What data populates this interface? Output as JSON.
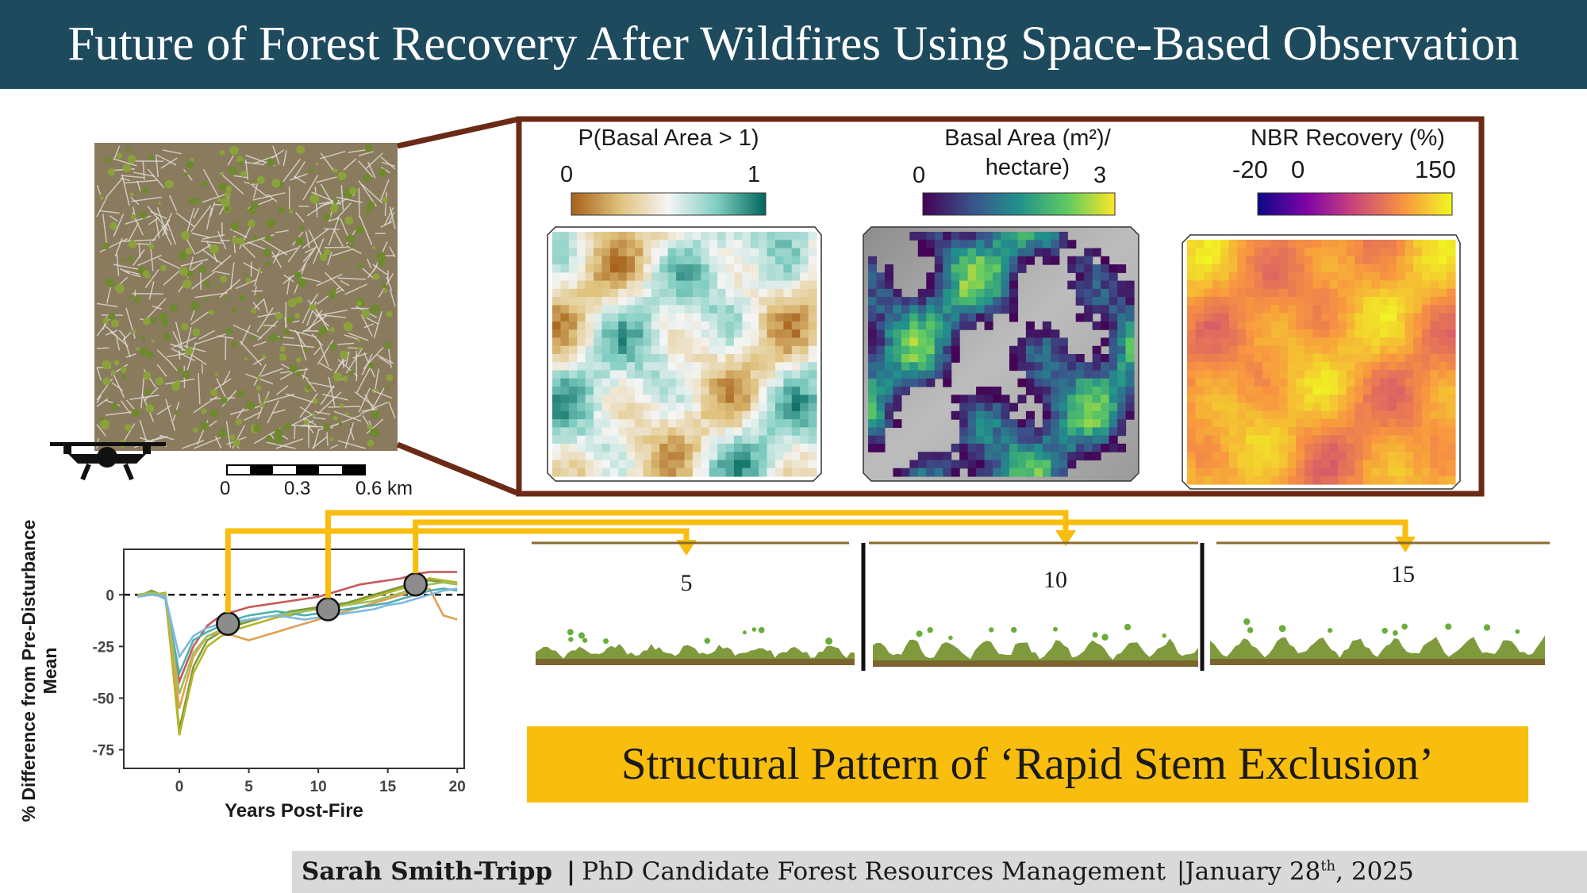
{
  "title": "Future of Forest Recovery After Wildfires Using Space-Based Observation",
  "scale_bar": {
    "ticks": [
      "0",
      "0.3",
      "0.6 km"
    ]
  },
  "maps": [
    {
      "title_lines": [
        "P(Basal Area > 1)"
      ],
      "min": "0",
      "max": "1",
      "colormap": [
        "#a6611a",
        "#dfc27d",
        "#f5f5f5",
        "#80cdc1",
        "#01665e"
      ]
    },
    {
      "title_lines": [
        "Basal Area (m²)/",
        "hectare)"
      ],
      "min": "0",
      "max": "3",
      "colormap": [
        "#440154",
        "#3b528b",
        "#21918c",
        "#5ec962",
        "#fde725"
      ]
    },
    {
      "title_lines": [
        "NBR Recovery (%)"
      ],
      "min": "-20",
      "mid": "0",
      "max": "150",
      "colormap": [
        "#0d0887",
        "#7e03a8",
        "#cc4778",
        "#f89540",
        "#f0f921"
      ]
    }
  ],
  "chart_data": {
    "type": "line",
    "xlabel": "Years Post-Fire",
    "ylabel": "% Difference from Pre-Disturbance Mean",
    "xlim": [
      -4,
      20.5
    ],
    "ylim": [
      -84,
      22
    ],
    "xticks": [
      "0",
      "5",
      "10",
      "15",
      "20"
    ],
    "yticks": [
      "0",
      "-25",
      "-50",
      "-75"
    ],
    "reference_line": 0,
    "grid": false,
    "x": [
      -3,
      -2,
      -1,
      0,
      1,
      2,
      3,
      4,
      5,
      6,
      7,
      8,
      9,
      10,
      11,
      12,
      13,
      14,
      15,
      16,
      17,
      18,
      19,
      20
    ],
    "series": [
      {
        "color": "#c85a5a",
        "values": [
          0,
          1,
          0,
          -42,
          -25,
          -15,
          -10,
          -8,
          -6,
          -5,
          -4,
          -3,
          -2,
          -1,
          1,
          3,
          5,
          6,
          7,
          8,
          10,
          11,
          11,
          11
        ]
      },
      {
        "color": "#7a9a3a",
        "values": [
          -1,
          2,
          -1,
          -65,
          -35,
          -22,
          -18,
          -15,
          -13,
          -11,
          -10,
          -8,
          -7,
          -6,
          -5,
          -4,
          -2,
          0,
          2,
          4,
          6,
          7,
          6,
          5
        ]
      },
      {
        "color": "#b5b52a",
        "values": [
          0,
          0,
          1,
          -68,
          -38,
          -25,
          -20,
          -17,
          -15,
          -13,
          -11,
          -10,
          -8,
          -7,
          -6,
          -5,
          -3,
          -1,
          1,
          3,
          5,
          8,
          7,
          6
        ]
      },
      {
        "color": "#e0a050",
        "values": [
          -1,
          1,
          -1,
          -55,
          -30,
          -20,
          -18,
          -20,
          -22,
          -20,
          -18,
          -16,
          -14,
          -12,
          -10,
          -8,
          -6,
          -4,
          -2,
          0,
          2,
          3,
          -10,
          -12
        ]
      },
      {
        "color": "#4fb0b0",
        "values": [
          0,
          1,
          -2,
          -38,
          -22,
          -18,
          -15,
          -12,
          -10,
          -9,
          -8,
          -9,
          -10,
          -9,
          -8,
          -7,
          -6,
          -5,
          -4,
          -2,
          0,
          2,
          3,
          2
        ]
      },
      {
        "color": "#a0c060",
        "values": [
          0,
          1,
          0,
          -48,
          -28,
          -20,
          -17,
          -14,
          -12,
          -11,
          -10,
          -9,
          -8,
          -7,
          -6,
          -5,
          -4,
          -3,
          -1,
          1,
          3,
          5,
          6,
          5
        ]
      },
      {
        "color": "#7fb8e0",
        "values": [
          -1,
          0,
          -1,
          -30,
          -20,
          -16,
          -14,
          -13,
          -12,
          -11,
          -10,
          -11,
          -12,
          -11,
          -10,
          -9,
          -8,
          -7,
          -5,
          -4,
          -2,
          0,
          2,
          3
        ]
      }
    ],
    "markers": [
      {
        "x": 3.5,
        "y": -14
      },
      {
        "x": 10.7,
        "y": -7
      },
      {
        "x": 17,
        "y": 5
      }
    ]
  },
  "profiles": [
    {
      "label": "5",
      "year": 5
    },
    {
      "label": "10",
      "year": 10
    },
    {
      "label": "15",
      "year": 15
    }
  ],
  "banner": "Structural Pattern of ‘Rapid Stem Exclusion’",
  "footer": {
    "name": "Sarah Smith-Tripp",
    "sep1": "|",
    "role": "PhD Candidate Forest Resources Management",
    "sep2": "|",
    "date_prefix": "January 28",
    "date_sup": "th",
    "date_suffix": ", 2025"
  },
  "colors": {
    "title_bg": "#1e4a5e",
    "frame": "#6b2a15",
    "arrow": "#f8bd0d",
    "banner": "#f8bd0d",
    "footer_bg": "#d9d9d9"
  }
}
